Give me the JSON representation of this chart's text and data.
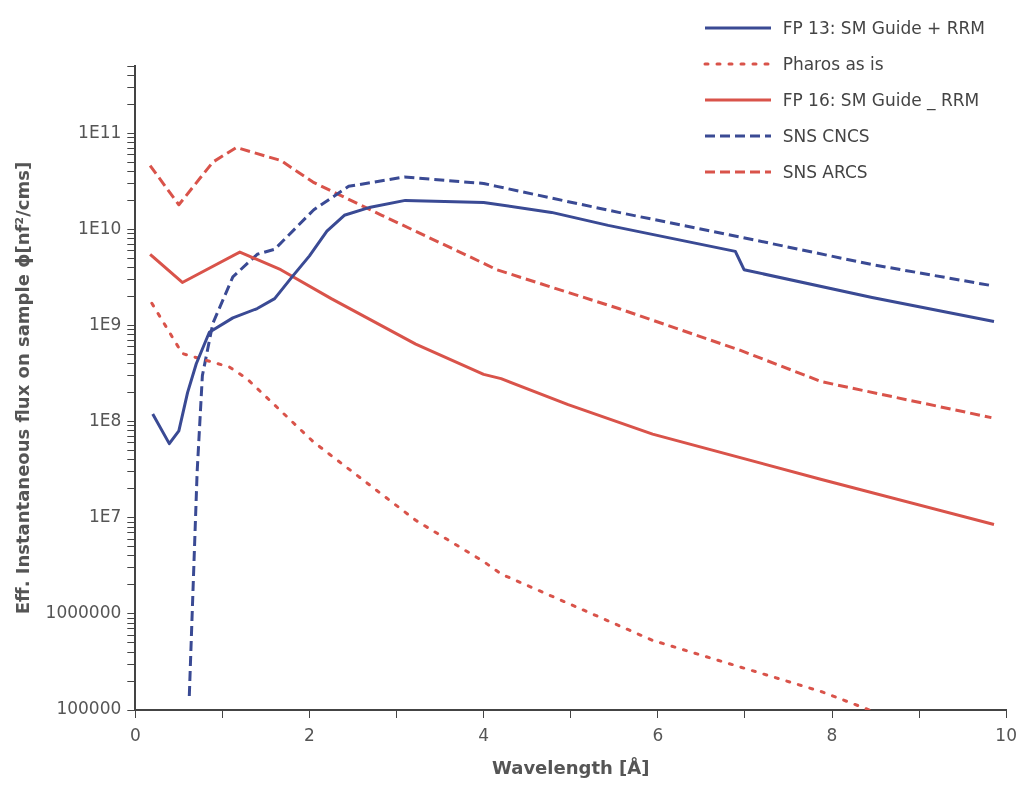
{
  "chart_data": {
    "type": "line",
    "xlabel": "Wavelength [Å]",
    "ylabel": "Eff. Instantaneous flux on sample ϕ[nf²/cms]",
    "log": "y",
    "legend": "top right",
    "grid": false,
    "marker": "none",
    "xlim": [
      0,
      10
    ],
    "xticks": [
      0,
      {
        "value": 1,
        "label": null
      },
      2,
      {
        "value": 3,
        "label": null
      },
      4,
      {
        "value": 5,
        "label": null
      },
      6,
      {
        "value": 7,
        "label": null
      },
      8,
      {
        "value": 9,
        "label": null
      },
      10
    ],
    "ylim": [
      100000,
      500000000000
    ],
    "yticks": [
      100000,
      {
        "value": 200000,
        "label": null
      },
      {
        "value": 300000,
        "label": null
      },
      {
        "value": 400000,
        "label": null
      },
      {
        "value": 500000,
        "label": null
      },
      {
        "value": 600000,
        "label": null
      },
      {
        "value": 700000,
        "label": null
      },
      {
        "value": 800000,
        "label": null
      },
      {
        "value": 900000,
        "label": null
      },
      1000000,
      {
        "value": 2000000,
        "label": null
      },
      {
        "value": 3000000,
        "label": null
      },
      {
        "value": 4000000,
        "label": null
      },
      {
        "value": 5000000,
        "label": null
      },
      {
        "value": 6000000,
        "label": null
      },
      {
        "value": 7000000,
        "label": null
      },
      {
        "value": 8000000,
        "label": null
      },
      {
        "value": 9000000,
        "label": null
      },
      {
        "value": 10000000,
        "label": "1E7"
      },
      {
        "value": 20000000,
        "label": null
      },
      {
        "value": 30000000,
        "label": null
      },
      {
        "value": 40000000,
        "label": null
      },
      {
        "value": 50000000,
        "label": null
      },
      {
        "value": 60000000,
        "label": null
      },
      {
        "value": 70000000,
        "label": null
      },
      {
        "value": 80000000,
        "label": null
      },
      {
        "value": 90000000,
        "label": null
      },
      {
        "value": 100000000,
        "label": "1E8"
      },
      {
        "value": 200000000,
        "label": null
      },
      {
        "value": 300000000,
        "label": null
      },
      {
        "value": 400000000,
        "label": null
      },
      {
        "value": 500000000,
        "label": null
      },
      {
        "value": 600000000,
        "label": null
      },
      {
        "value": 700000000,
        "label": null
      },
      {
        "value": 800000000,
        "label": null
      },
      {
        "value": 900000000,
        "label": null
      },
      {
        "value": 1000000000,
        "label": "1E9"
      },
      {
        "value": 2000000000,
        "label": null
      },
      {
        "value": 3000000000,
        "label": null
      },
      {
        "value": 4000000000,
        "label": null
      },
      {
        "value": 5000000000,
        "label": null
      },
      {
        "value": 6000000000,
        "label": null
      },
      {
        "value": 7000000000,
        "label": null
      },
      {
        "value": 8000000000,
        "label": null
      },
      {
        "value": 9000000000,
        "label": null
      },
      {
        "value": 10000000000,
        "label": "1E10"
      },
      {
        "value": 20000000000,
        "label": null
      },
      {
        "value": 30000000000,
        "label": null
      },
      {
        "value": 40000000000,
        "label": null
      },
      {
        "value": 50000000000,
        "label": null
      },
      {
        "value": 60000000000,
        "label": null
      },
      {
        "value": 70000000000,
        "label": null
      },
      {
        "value": 80000000000,
        "label": null
      },
      {
        "value": 90000000000,
        "label": null
      },
      {
        "value": 100000000000,
        "label": "1E11"
      },
      {
        "value": 200000000000,
        "label": null
      },
      {
        "value": 300000000000,
        "label": null
      },
      {
        "value": 400000000000,
        "label": null
      },
      {
        "value": 500000000000,
        "label": null
      }
    ],
    "series": [
      {
        "name": "FP 13: SM Guide + RRM",
        "color": "#3a4a94",
        "line_style": "solid",
        "x": [
          0.2,
          0.39,
          0.5,
          0.6,
          0.7,
          0.85,
          1.12,
          1.4,
          1.6,
          1.8,
          2.0,
          2.2,
          2.4,
          2.7,
          3.1,
          4.0,
          4.78,
          5.43,
          6.89,
          6.99,
          8.46,
          9.86
        ],
        "values": [
          120000000,
          59000000,
          80000000,
          200000000,
          400000000,
          850000000,
          1200000000,
          1500000000,
          1900000000,
          3200000000,
          5300000000,
          9600000000,
          14000000000,
          17000000000,
          20000000000,
          19000000000,
          15000000000,
          11000000000,
          5900000000,
          3800000000,
          1950000000,
          1100000000
        ]
      },
      {
        "name": "Pharos as is",
        "color": "#d9534a",
        "line_style": "dotted",
        "x": [
          0.19,
          0.54,
          1.08,
          1.28,
          2.05,
          3.22,
          4.0,
          4.2,
          5.94,
          7.88,
          8.43
        ],
        "values": [
          1700000000,
          510000000,
          370000000,
          280000000,
          61000000,
          9400000,
          3500000,
          2600000,
          530000,
          155000,
          100000
        ]
      },
      {
        "name": "FP 16: SM Guide _ RRM",
        "color": "#d9534a",
        "line_style": "solid",
        "x": [
          0.17,
          0.54,
          1.2,
          1.67,
          2.25,
          3.22,
          4.0,
          4.2,
          4.97,
          5.94,
          7.88,
          9.86
        ],
        "values": [
          5500000000,
          2800000000,
          5800000000,
          3800000000,
          1900000000,
          640000000,
          310000000,
          280000000,
          150000000,
          74000000,
          25000000,
          8500000
        ]
      },
      {
        "name": "SNS CNCS",
        "color": "#3a4a94",
        "line_style": "dashed",
        "x": [
          0.62,
          0.71,
          0.77,
          0.89,
          1.12,
          1.4,
          1.6,
          2.05,
          2.45,
          3.09,
          4.0,
          4.15,
          5.55,
          6.95,
          8.46,
          9.83
        ],
        "values": [
          140000,
          30000000,
          300000000,
          1050000000,
          3200000000,
          5500000000,
          6200000000,
          16000000000,
          28000000000,
          35000000000,
          30000000000,
          28000000000,
          15000000000,
          8300000000,
          4300000000,
          2600000000
        ]
      },
      {
        "name": "SNS ARCS",
        "color": "#d9534a",
        "line_style": "dashed",
        "x": [
          0.17,
          0.5,
          0.89,
          1.16,
          1.67,
          2.04,
          2.83,
          4.03,
          4.15,
          5.55,
          6.95,
          7.88,
          9.83
        ],
        "values": [
          46000000000,
          18000000000,
          50000000000,
          71000000000,
          52000000000,
          31000000000,
          14000000000,
          4300000000,
          3800000000,
          1500000000,
          550000000,
          260000000,
          110000000
        ]
      }
    ]
  }
}
